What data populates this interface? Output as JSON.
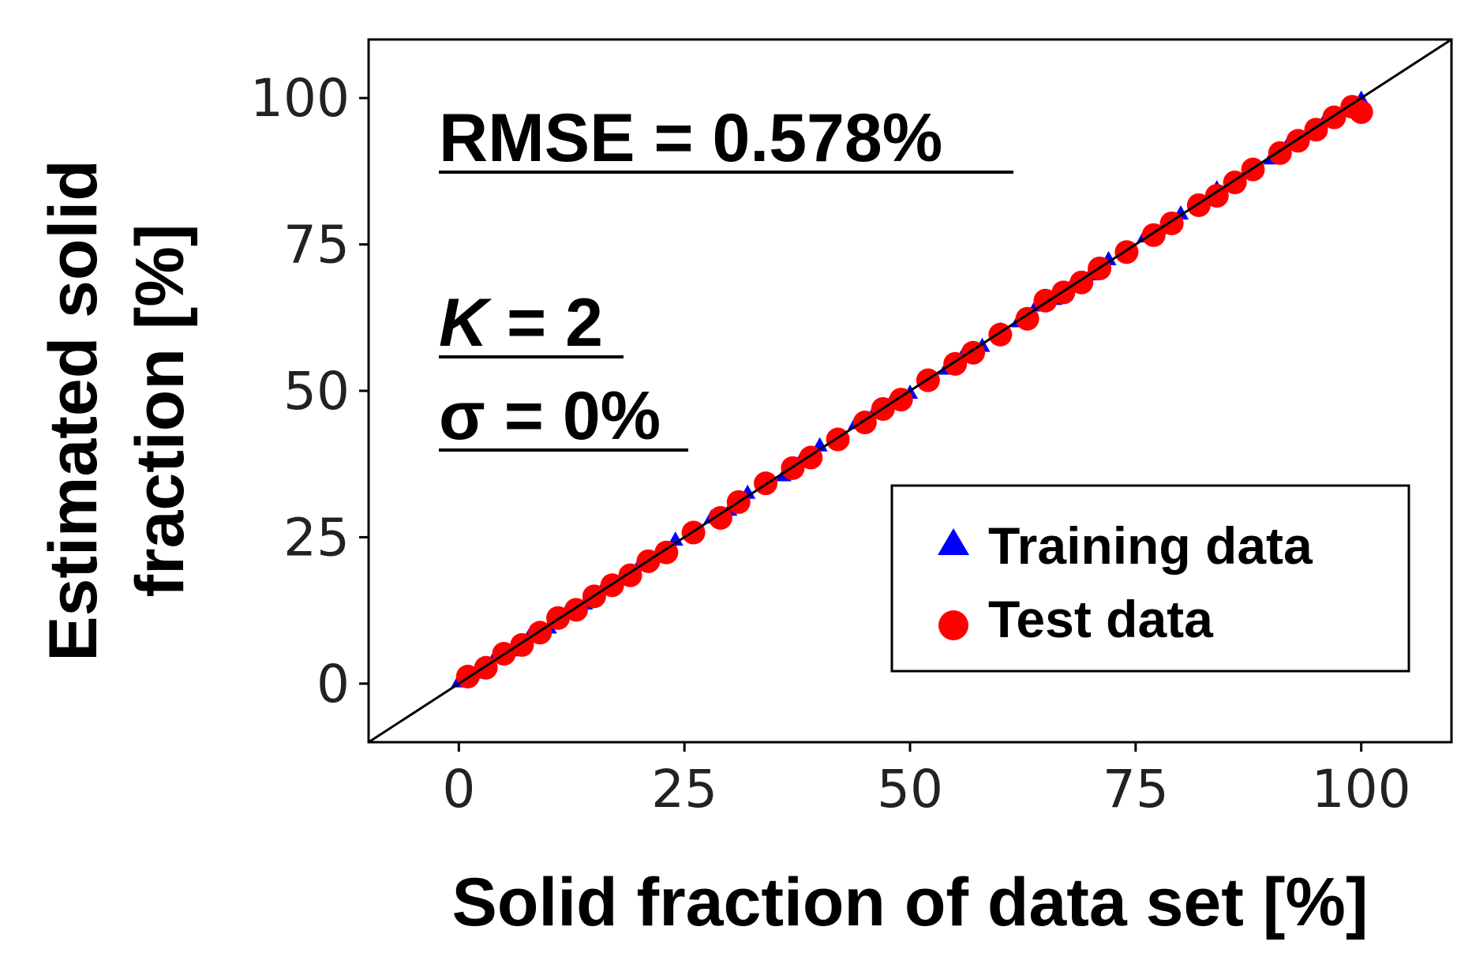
{
  "chart_data": {
    "type": "scatter",
    "xlabel": "Solid fraction of data set [%]",
    "ylabel_line1": "Estimated solid",
    "ylabel_line2": "fraction [%]",
    "xlim": [
      -10,
      110
    ],
    "ylim": [
      -10,
      110
    ],
    "xticks": [
      0,
      25,
      50,
      75,
      100
    ],
    "yticks": [
      0,
      25,
      50,
      75,
      100
    ],
    "reference_line": "y = x",
    "annotations": {
      "rmse": "RMSE = 0.578%",
      "k_symbol": "K",
      "k_value": " = 2",
      "sigma": "σ = 0%"
    },
    "legend": {
      "position": "lower-right",
      "training_label": "Training data",
      "test_label": "Test data"
    },
    "colors": {
      "training": "#0000ff",
      "test": "#ff0000",
      "line": "#000000"
    },
    "series": [
      {
        "name": "Training data",
        "marker": "triangle",
        "x": [
          0,
          2,
          4,
          6,
          8,
          10,
          12,
          14,
          16,
          18,
          20,
          22,
          24,
          26,
          28,
          30,
          32,
          34,
          36,
          38,
          40,
          42,
          44,
          46,
          48,
          50,
          52,
          54,
          56,
          58,
          60,
          62,
          64,
          66,
          68,
          70,
          72,
          74,
          76,
          78,
          80,
          82,
          84,
          86,
          88,
          90,
          92,
          94,
          96,
          98,
          100
        ],
        "y": [
          0.3,
          1.8,
          4.5,
          5.6,
          8.6,
          9.5,
          12.4,
          13.6,
          16.3,
          17.7,
          20.2,
          21.6,
          24.5,
          25.7,
          28.3,
          29.6,
          32.5,
          33.8,
          35.5,
          38.4,
          40.6,
          41.7,
          44.4,
          46.2,
          48.3,
          49.6,
          52.2,
          53.7,
          56.4,
          57.6,
          60.3,
          61.8,
          64.5,
          65.6,
          68.2,
          69.8,
          72.4,
          73.6,
          76.3,
          77.7,
          80.2,
          81.6,
          84.5,
          85.8,
          88.3,
          89.6,
          92.4,
          93.8,
          96.3,
          97.7,
          99.8
        ]
      },
      {
        "name": "Test data",
        "marker": "circle",
        "x": [
          1,
          3,
          5,
          7,
          9,
          11,
          13,
          15,
          17,
          19,
          21,
          23,
          26,
          29,
          31,
          34,
          37,
          39,
          42,
          45,
          47,
          49,
          52,
          55,
          57,
          60,
          63,
          65,
          67,
          69,
          71,
          74,
          77,
          79,
          82,
          84,
          86,
          88,
          91,
          93,
          95,
          97,
          99,
          100
        ],
        "y": [
          1.2,
          2.7,
          5.1,
          6.6,
          8.7,
          11.2,
          12.6,
          14.9,
          16.8,
          18.5,
          20.9,
          22.4,
          25.8,
          28.3,
          31.0,
          34.2,
          36.8,
          38.6,
          41.7,
          44.6,
          46.9,
          48.5,
          51.8,
          54.6,
          56.5,
          59.6,
          62.3,
          65.4,
          66.8,
          68.5,
          70.9,
          73.7,
          76.6,
          78.6,
          81.7,
          83.3,
          85.6,
          87.8,
          90.6,
          92.7,
          94.6,
          96.7,
          98.5,
          97.6
        ]
      }
    ]
  }
}
